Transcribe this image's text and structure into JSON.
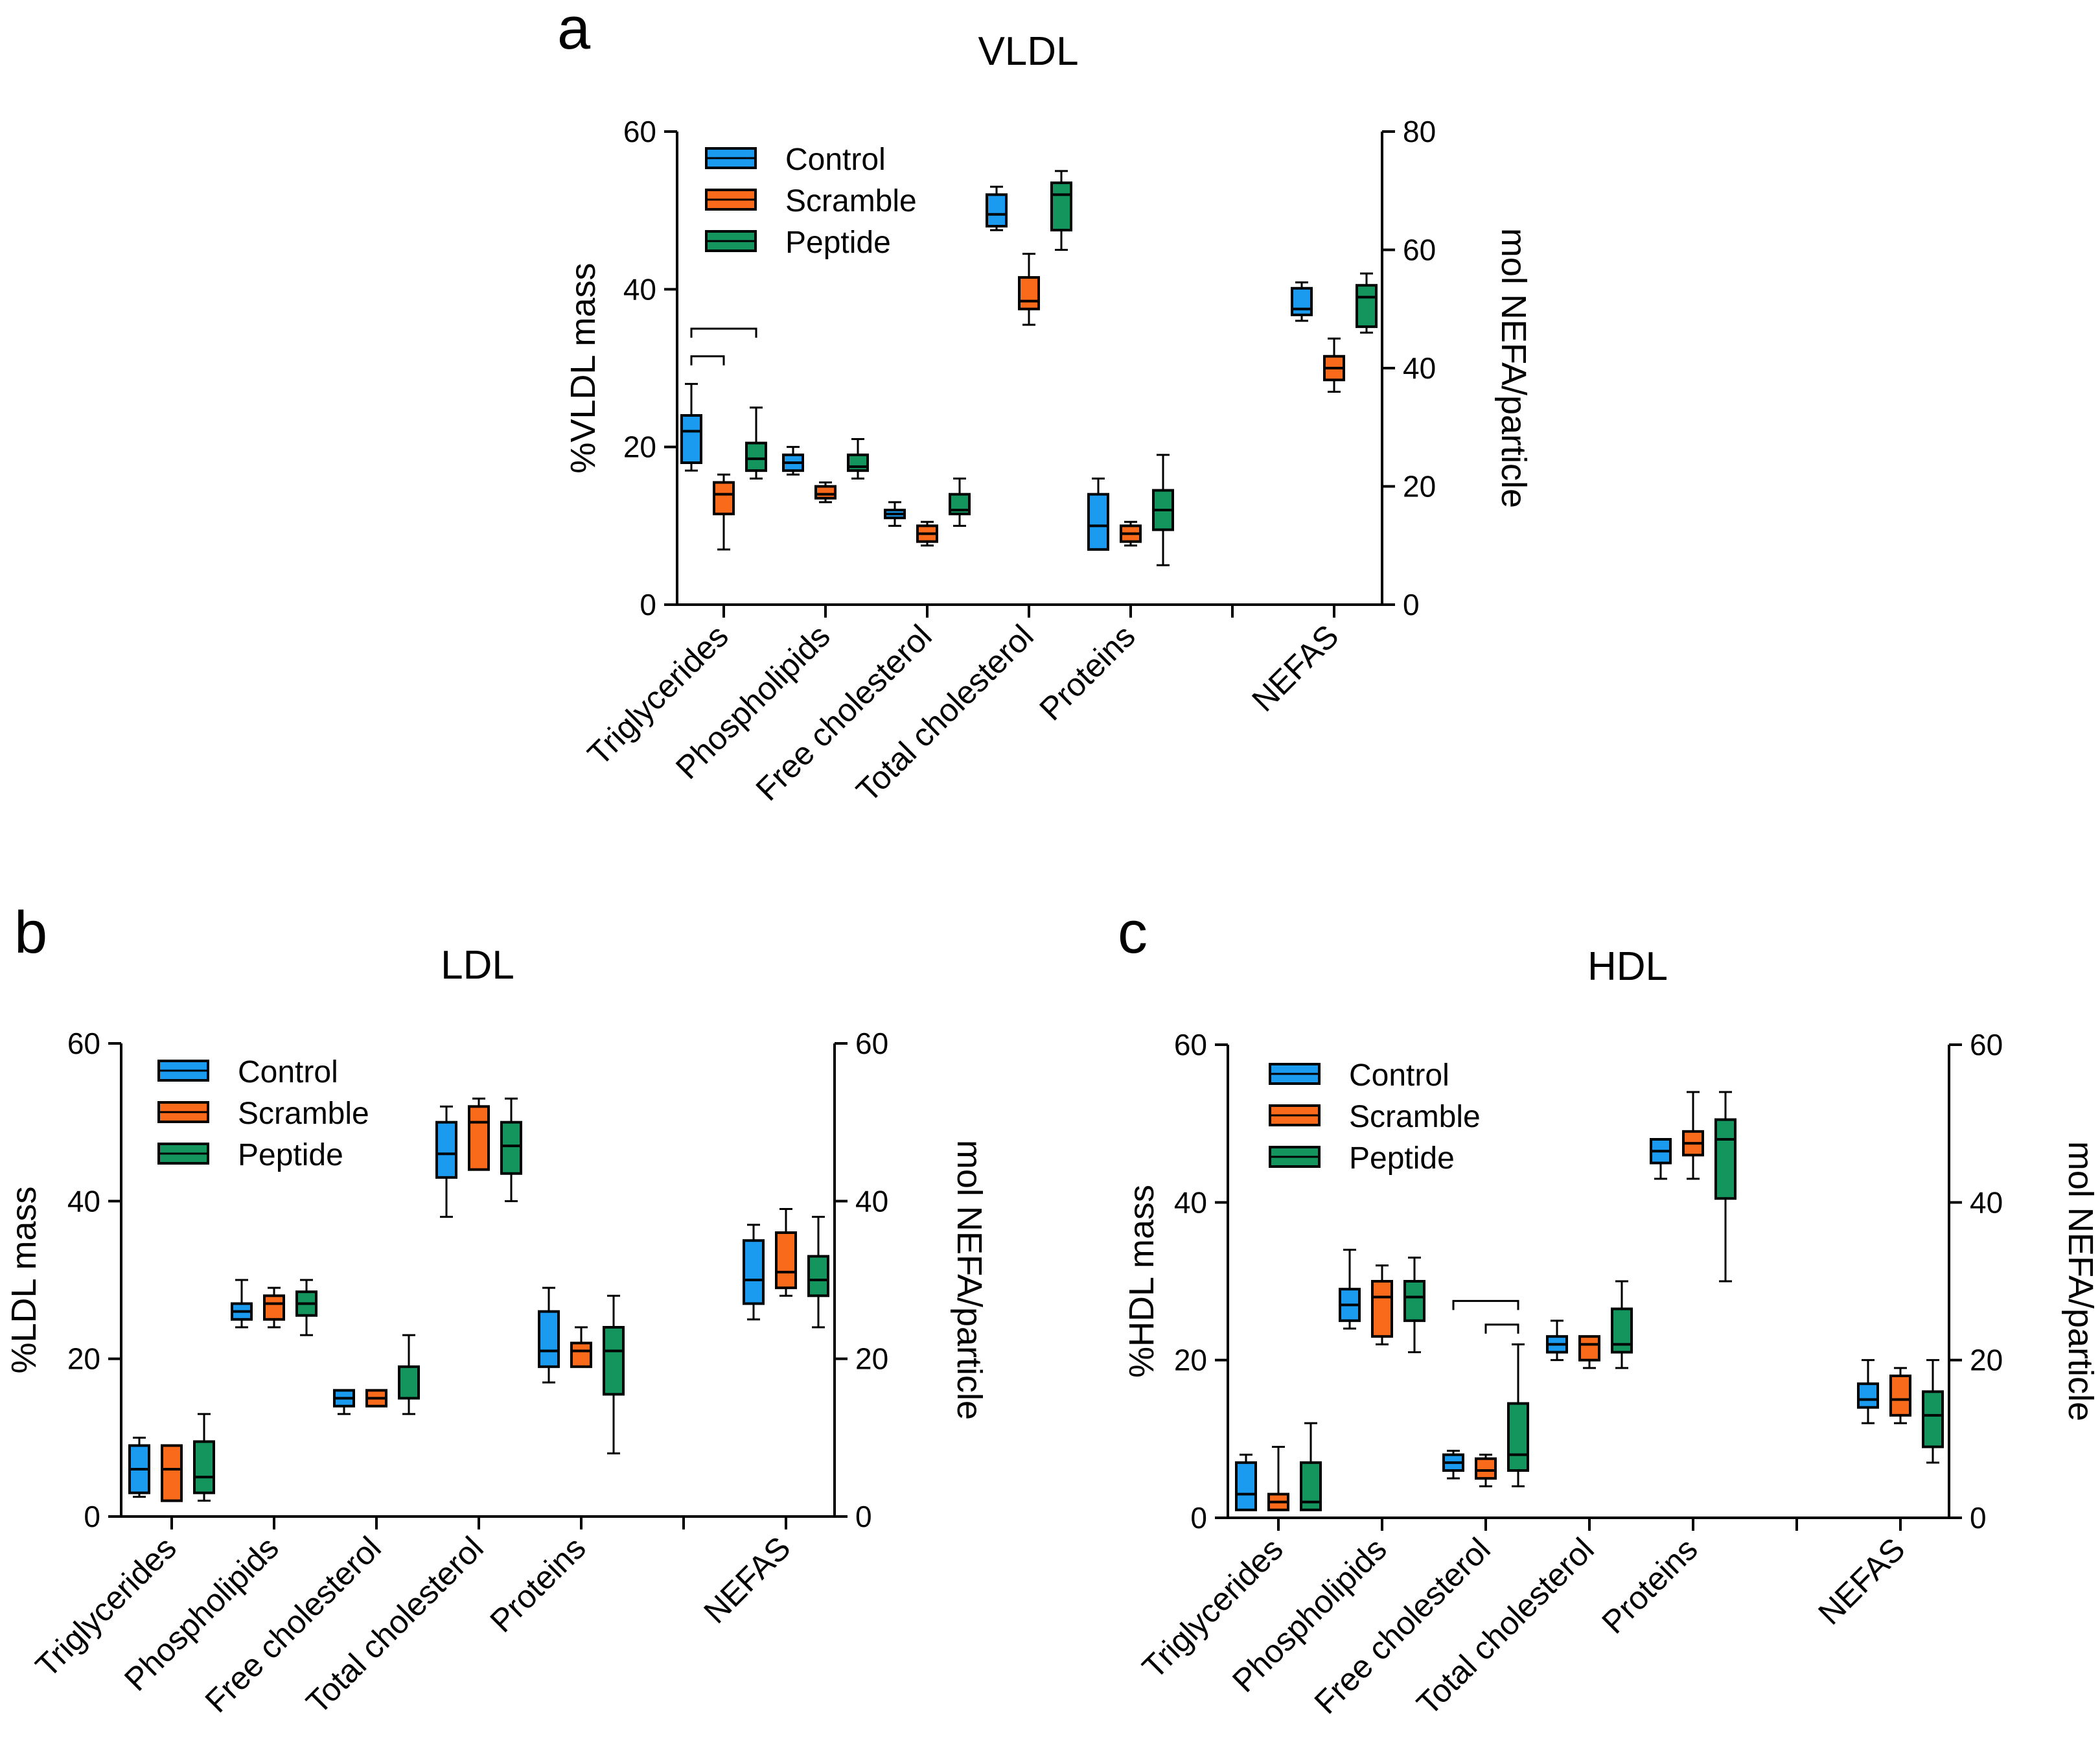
{
  "colors": {
    "Control": "#1a9bef",
    "Scramble": "#f96a1b",
    "Peptide": "#14955e"
  },
  "legend": [
    "Control",
    "Scramble",
    "Peptide"
  ],
  "chart_data": [
    {
      "panel": "a",
      "title": "VLDL",
      "type": "box",
      "ylabel_left": "%VLDL mass",
      "ylabel_right": "mol NEFA/particle",
      "ylim_left": [
        0,
        60
      ],
      "ticks_left": [
        0,
        20,
        40,
        60
      ],
      "ylim_right": [
        0,
        80
      ],
      "ticks_right": [
        0,
        20,
        40,
        60,
        80
      ],
      "categories": [
        "Triglycerides",
        "Phospholipids",
        "Free cholesterol",
        "Total cholesterol",
        "Proteins",
        "NEFAS"
      ],
      "right_axis_category": "NEFAS",
      "series": [
        {
          "name": "Control",
          "boxes": [
            {
              "min": 17,
              "q1": 18,
              "median": 22,
              "q3": 24,
              "max": 28
            },
            {
              "min": 16.5,
              "q1": 17,
              "median": 18,
              "q3": 19,
              "max": 20
            },
            {
              "min": 10,
              "q1": 11,
              "median": 11.5,
              "q3": 12,
              "max": 13
            },
            {
              "min": 47.5,
              "q1": 48,
              "median": 49.5,
              "q3": 52,
              "max": 53
            },
            {
              "min": 7,
              "q1": 7,
              "median": 10,
              "q3": 14,
              "max": 16
            },
            {
              "min": 48,
              "q1": 49,
              "median": 50,
              "q3": 53.5,
              "max": 54.5
            }
          ]
        },
        {
          "name": "Scramble",
          "boxes": [
            {
              "min": 7,
              "q1": 11.5,
              "median": 14,
              "q3": 15.5,
              "max": 16.5
            },
            {
              "min": 13,
              "q1": 13.5,
              "median": 14,
              "q3": 15,
              "max": 15.5
            },
            {
              "min": 7.5,
              "q1": 8,
              "median": 9,
              "q3": 10,
              "max": 10.5
            },
            {
              "min": 35.5,
              "q1": 37.5,
              "median": 38.5,
              "q3": 41.5,
              "max": 44.5
            },
            {
              "min": 7.5,
              "q1": 8,
              "median": 9,
              "q3": 10,
              "max": 10.5
            },
            {
              "min": 36,
              "q1": 38,
              "median": 40,
              "q3": 42,
              "max": 45
            }
          ]
        },
        {
          "name": "Peptide",
          "boxes": [
            {
              "min": 16,
              "q1": 17,
              "median": 18.5,
              "q3": 20.5,
              "max": 25
            },
            {
              "min": 16,
              "q1": 17,
              "median": 17.5,
              "q3": 19,
              "max": 21
            },
            {
              "min": 10,
              "q1": 11.5,
              "median": 12,
              "q3": 14,
              "max": 16
            },
            {
              "min": 45,
              "q1": 47.5,
              "median": 52,
              "q3": 53.5,
              "max": 55
            },
            {
              "min": 5,
              "q1": 9.5,
              "median": 12,
              "q3": 14.5,
              "max": 19
            },
            {
              "min": 46,
              "q1": 47,
              "median": 52,
              "q3": 54,
              "max": 56
            }
          ]
        }
      ],
      "significance_brackets": [
        {
          "category": "Triglycerides",
          "from": "Control",
          "to": "Scramble",
          "y": 31.5
        },
        {
          "category": "Triglycerides",
          "from": "Control",
          "to": "Peptide",
          "y": 35
        }
      ]
    },
    {
      "panel": "b",
      "title": "LDL",
      "type": "box",
      "ylabel_left": "%LDL mass",
      "ylabel_right": "mol NEFA/particle",
      "ylim_left": [
        0,
        60
      ],
      "ticks_left": [
        0,
        20,
        40,
        60
      ],
      "ylim_right": [
        0,
        60
      ],
      "ticks_right": [
        0,
        20,
        40,
        60
      ],
      "categories": [
        "Triglycerides",
        "Phospholipids",
        "Free cholesterol",
        "Total cholesterol",
        "Proteins",
        "NEFAS"
      ],
      "right_axis_category": "NEFAS",
      "series": [
        {
          "name": "Control",
          "boxes": [
            {
              "min": 2.5,
              "q1": 3,
              "median": 6,
              "q3": 9,
              "max": 10
            },
            {
              "min": 24,
              "q1": 25,
              "median": 26,
              "q3": 27,
              "max": 30
            },
            {
              "min": 13,
              "q1": 14,
              "median": 15,
              "q3": 16,
              "max": 16
            },
            {
              "min": 38,
              "q1": 43,
              "median": 46,
              "q3": 50,
              "max": 52
            },
            {
              "min": 17,
              "q1": 19,
              "median": 21,
              "q3": 26,
              "max": 29
            },
            {
              "min": 25,
              "q1": 27,
              "median": 30,
              "q3": 35,
              "max": 37
            }
          ]
        },
        {
          "name": "Scramble",
          "boxes": [
            {
              "min": 2,
              "q1": 2,
              "median": 6,
              "q3": 9,
              "max": 9
            },
            {
              "min": 24,
              "q1": 25,
              "median": 27,
              "q3": 28,
              "max": 29
            },
            {
              "min": 14,
              "q1": 14,
              "median": 15,
              "q3": 16,
              "max": 16
            },
            {
              "min": 44,
              "q1": 44,
              "median": 50,
              "q3": 52,
              "max": 53
            },
            {
              "min": 19,
              "q1": 19,
              "median": 21,
              "q3": 22,
              "max": 24
            },
            {
              "min": 28,
              "q1": 29,
              "median": 31,
              "q3": 36,
              "max": 39
            }
          ]
        },
        {
          "name": "Peptide",
          "boxes": [
            {
              "min": 2,
              "q1": 3,
              "median": 5,
              "q3": 9.5,
              "max": 13
            },
            {
              "min": 23,
              "q1": 25.5,
              "median": 27,
              "q3": 28.5,
              "max": 30
            },
            {
              "min": 13,
              "q1": 15,
              "median": 15,
              "q3": 19,
              "max": 23
            },
            {
              "min": 40,
              "q1": 43.5,
              "median": 47,
              "q3": 50,
              "max": 53
            },
            {
              "min": 8,
              "q1": 15.5,
              "median": 21,
              "q3": 24,
              "max": 28
            },
            {
              "min": 24,
              "q1": 28,
              "median": 30,
              "q3": 33,
              "max": 38
            }
          ]
        }
      ],
      "significance_brackets": []
    },
    {
      "panel": "c",
      "title": "HDL",
      "type": "box",
      "ylabel_left": "%HDL mass",
      "ylabel_right": "mol NEFA/particle",
      "ylim_left": [
        0,
        60
      ],
      "ticks_left": [
        0,
        20,
        40,
        60
      ],
      "ylim_right": [
        0,
        60
      ],
      "ticks_right": [
        0,
        20,
        40,
        60
      ],
      "categories": [
        "Triglycerides",
        "Phospholipids",
        "Free cholesterol",
        "Total cholesterol",
        "Proteins",
        "NEFAS"
      ],
      "right_axis_category": "NEFAS",
      "series": [
        {
          "name": "Control",
          "boxes": [
            {
              "min": 1,
              "q1": 1,
              "median": 3,
              "q3": 7,
              "max": 8
            },
            {
              "min": 24,
              "q1": 25,
              "median": 27,
              "q3": 29,
              "max": 34
            },
            {
              "min": 5,
              "q1": 6,
              "median": 7,
              "q3": 8,
              "max": 8.5
            },
            {
              "min": 20,
              "q1": 21,
              "median": 22,
              "q3": 23,
              "max": 25
            },
            {
              "min": 43,
              "q1": 45,
              "median": 46.5,
              "q3": 48,
              "max": 48
            },
            {
              "min": 12,
              "q1": 14,
              "median": 15,
              "q3": 17,
              "max": 20
            }
          ]
        },
        {
          "name": "Scramble",
          "boxes": [
            {
              "min": 1,
              "q1": 1,
              "median": 2,
              "q3": 3,
              "max": 9
            },
            {
              "min": 22,
              "q1": 23,
              "median": 28,
              "q3": 30,
              "max": 32
            },
            {
              "min": 4,
              "q1": 5,
              "median": 6,
              "q3": 7.5,
              "max": 8
            },
            {
              "min": 19,
              "q1": 20,
              "median": 22,
              "q3": 23,
              "max": 23
            },
            {
              "min": 43,
              "q1": 46,
              "median": 47.5,
              "q3": 49,
              "max": 54
            },
            {
              "min": 12,
              "q1": 13,
              "median": 15,
              "q3": 18,
              "max": 19
            }
          ]
        },
        {
          "name": "Peptide",
          "boxes": [
            {
              "min": 1,
              "q1": 1,
              "median": 2,
              "q3": 7,
              "max": 12
            },
            {
              "min": 21,
              "q1": 25,
              "median": 28,
              "q3": 30,
              "max": 33
            },
            {
              "min": 4,
              "q1": 6,
              "median": 8,
              "q3": 14.5,
              "max": 22
            },
            {
              "min": 19,
              "q1": 21,
              "median": 22,
              "q3": 26.5,
              "max": 30
            },
            {
              "min": 30,
              "q1": 40.5,
              "median": 48,
              "q3": 50.5,
              "max": 54
            },
            {
              "min": 7,
              "q1": 9,
              "median": 13,
              "q3": 16,
              "max": 20
            }
          ]
        }
      ],
      "significance_brackets": [
        {
          "category": "Free cholesterol",
          "from": "Scramble",
          "to": "Peptide",
          "y": 24.5
        },
        {
          "category": "Free cholesterol",
          "from": "Control",
          "to": "Peptide",
          "y": 27.5
        }
      ]
    }
  ]
}
